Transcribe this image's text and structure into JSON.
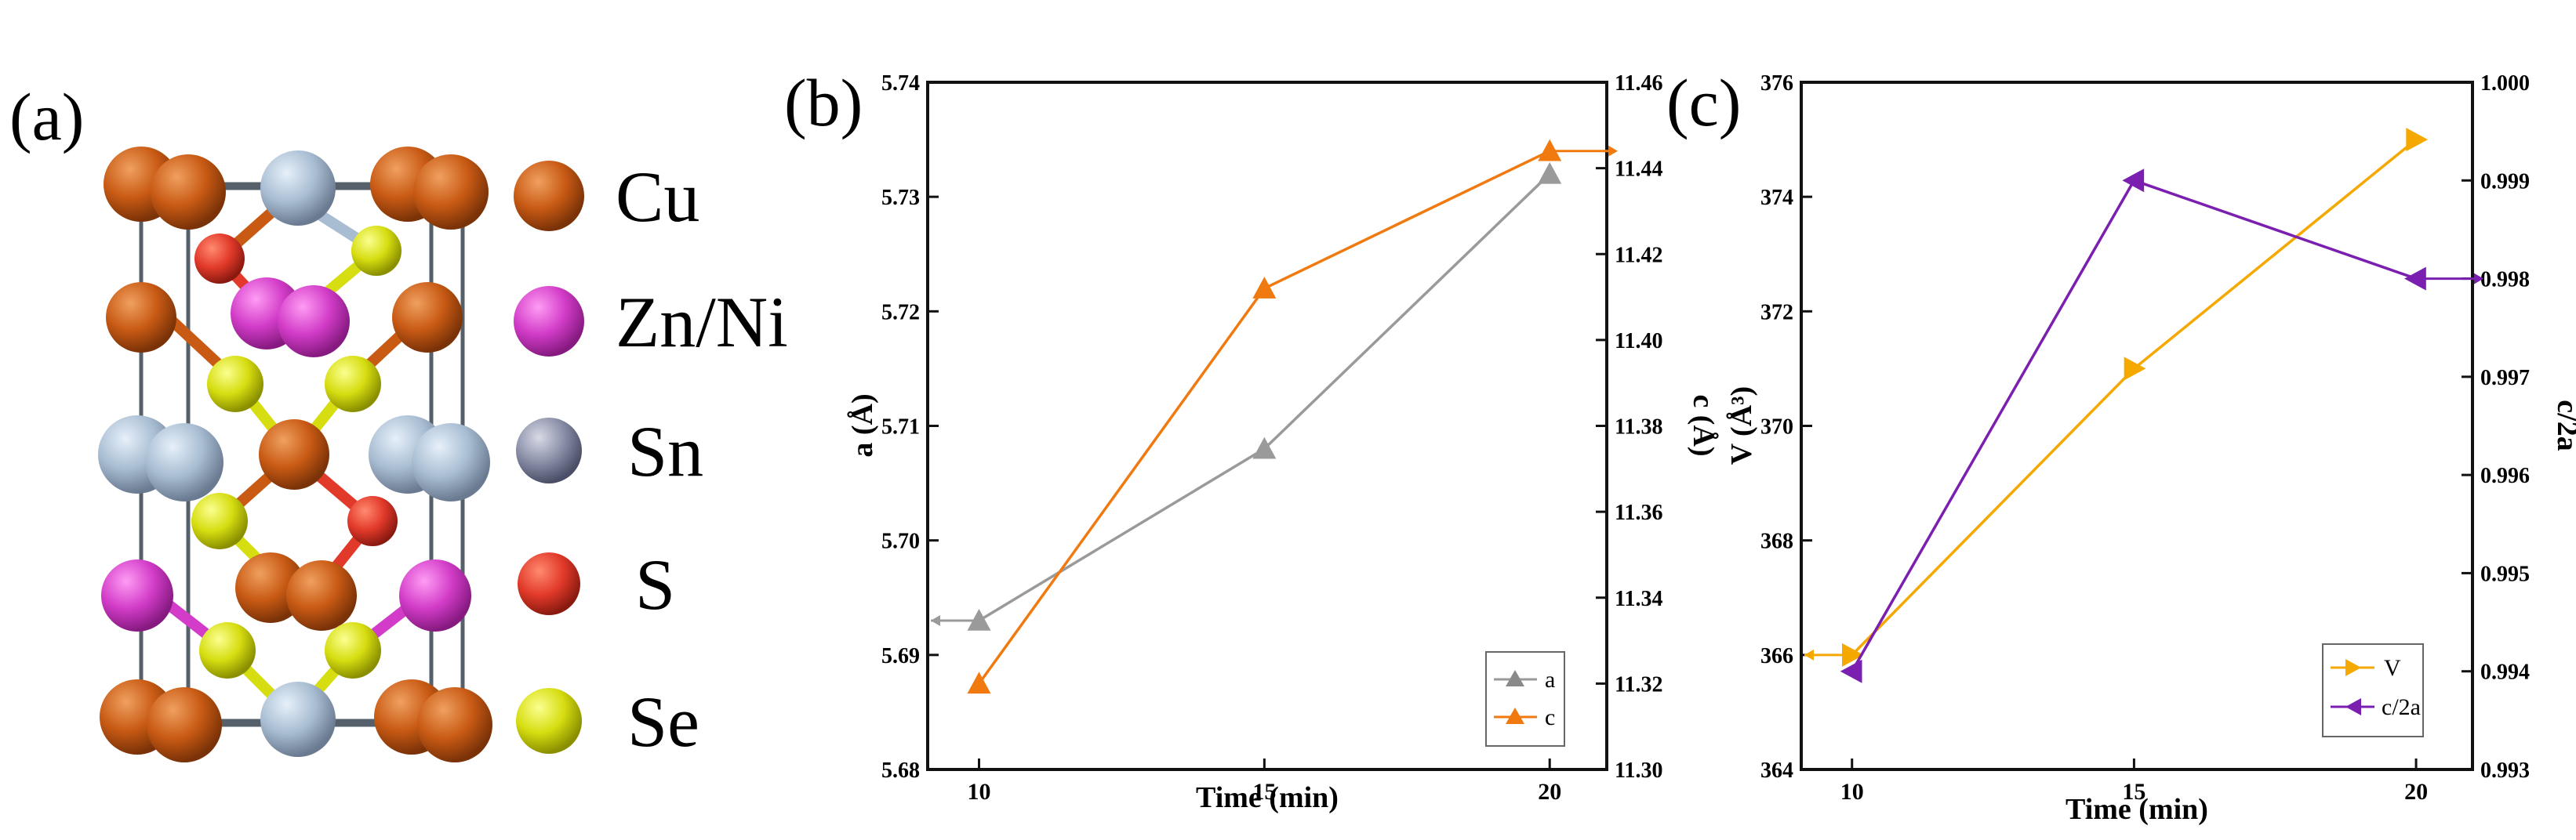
{
  "panels": {
    "a": {
      "label": "(a)"
    },
    "b": {
      "label": "(b)"
    },
    "c": {
      "label": "(c)"
    }
  },
  "legend_atoms": [
    {
      "element": "Cu",
      "color": "#c85a14"
    },
    {
      "element": "Zn/Ni",
      "color": "#d23cc8"
    },
    {
      "element": "Sn",
      "color": "#8a8fa8"
    },
    {
      "element": "S",
      "color": "#e23a2a"
    },
    {
      "element": "Se",
      "color": "#d6dd10"
    }
  ],
  "chart_data": [
    {
      "panel": "b",
      "type": "line",
      "title": "",
      "xlabel": "Time (min)",
      "ylabel": "a (Å)",
      "y2label": "c (Å)",
      "x": [
        10,
        15,
        20
      ],
      "xticks": [
        "10",
        "15",
        "20"
      ],
      "ylim": [
        5.68,
        5.74
      ],
      "yticks": [
        "5.68",
        "5.69",
        "5.70",
        "5.71",
        "5.72",
        "5.73",
        "5.74"
      ],
      "y2lim": [
        11.3,
        11.46
      ],
      "y2ticks": [
        "11.30",
        "11.32",
        "11.34",
        "11.36",
        "11.38",
        "11.40",
        "11.42",
        "11.44",
        "11.46"
      ],
      "legend_position": "bottom-right",
      "series": [
        {
          "name": "a",
          "axis": "left",
          "values": [
            5.693,
            5.708,
            5.732
          ],
          "color": "#9a9a9a",
          "marker": "triangle-up"
        },
        {
          "name": "c",
          "axis": "right",
          "values": [
            11.32,
            11.412,
            11.444
          ],
          "color": "#f07a10",
          "marker": "triangle-up"
        }
      ]
    },
    {
      "panel": "c",
      "type": "line",
      "title": "",
      "xlabel": "Time (min)",
      "ylabel": "V (Å³)",
      "y2label": "c/2a",
      "x": [
        10,
        15,
        20
      ],
      "xticks": [
        "10",
        "15",
        "20"
      ],
      "ylim": [
        364,
        376
      ],
      "yticks": [
        "364",
        "366",
        "368",
        "370",
        "372",
        "374",
        "376"
      ],
      "y2lim": [
        0.993,
        1.0
      ],
      "y2ticks": [
        "0.993",
        "0.994",
        "0.995",
        "0.996",
        "0.997",
        "0.998",
        "0.999",
        "1.000"
      ],
      "legend_position": "bottom-right",
      "series": [
        {
          "name": "V",
          "axis": "left",
          "values": [
            366.0,
            371.0,
            375.0
          ],
          "color": "#f5a800",
          "marker": "triangle-right"
        },
        {
          "name": "c/2a",
          "axis": "right",
          "values": [
            0.994,
            0.999,
            0.998
          ],
          "color": "#7a1fb0",
          "marker": "triangle-left"
        }
      ]
    }
  ]
}
